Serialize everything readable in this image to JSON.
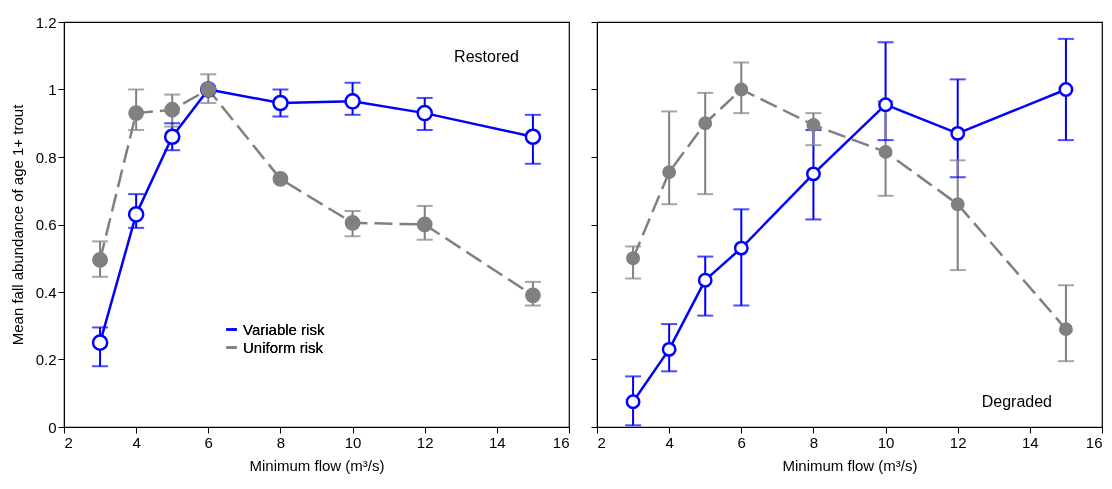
{
  "chart_data": [
    {
      "type": "line",
      "xlabel": "Minimum flow (m³/s)",
      "ylabel": "Mean fall abundance of age 1+ trout",
      "x": [
        3,
        4,
        5,
        6,
        8,
        10,
        12,
        15
      ],
      "xlim": [
        2,
        16
      ],
      "xticks": [
        2,
        4,
        6,
        8,
        10,
        12,
        14,
        16
      ],
      "ylim": [
        0,
        1.2
      ],
      "yticks": [
        0,
        0.2,
        0.4,
        0.6,
        0.8,
        1,
        1.2
      ],
      "legend": "bottom",
      "annotations": [
        "Restored"
      ],
      "series": [
        {
          "name": "Variable risk",
          "color": "#0000ff",
          "marker": "circle",
          "line_style": "solid",
          "values": [
            0.25,
            0.63,
            0.86,
            1.0,
            0.96,
            0.965,
            0.93,
            0.86
          ],
          "errors": [
            [
              0.18,
              0.295
            ],
            [
              0.59,
              0.69
            ],
            [
              0.82,
              0.9
            ],
            null,
            [
              0.92,
              1.0
            ],
            [
              0.925,
              1.02
            ],
            [
              0.88,
              0.975
            ],
            [
              0.78,
              0.925
            ]
          ]
        },
        {
          "name": "Uniform risk",
          "color": "#808080",
          "marker": "circle",
          "line_style": "dashed",
          "values": [
            0.495,
            0.93,
            0.94,
            1.0,
            0.735,
            0.605,
            0.6,
            0.39
          ],
          "errors": [
            [
              0.445,
              0.55
            ],
            [
              0.88,
              1.0
            ],
            [
              0.89,
              0.985
            ],
            [
              0.96,
              1.045
            ],
            null,
            [
              0.565,
              0.64
            ],
            [
              0.555,
              0.655
            ],
            [
              0.36,
              0.43
            ]
          ]
        }
      ]
    },
    {
      "type": "line",
      "xlabel": "Minimum flow (m³/s)",
      "x": [
        3,
        4,
        5,
        6,
        8,
        10,
        12,
        15
      ],
      "xlim": [
        2,
        16
      ],
      "xticks": [
        2,
        4,
        6,
        8,
        10,
        12,
        14,
        16
      ],
      "ylim": [
        0,
        1.2
      ],
      "yticks": [
        0,
        0.2,
        0.4,
        0.6,
        0.8,
        1,
        1.2
      ],
      "tick_labels": "x",
      "annotations": [
        "Degraded"
      ],
      "series": [
        {
          "color": "#0000ff",
          "marker": "circle",
          "line_style": "solid",
          "values": [
            0.075,
            0.23,
            0.435,
            0.53,
            0.75,
            0.955,
            0.87,
            1.0
          ],
          "errors": [
            [
              0.005,
              0.15
            ],
            [
              0.165,
              0.305
            ],
            [
              0.33,
              0.505
            ],
            [
              0.36,
              0.645
            ],
            [
              0.615,
              0.88
            ],
            [
              0.85,
              1.14
            ],
            [
              0.74,
              1.03
            ],
            [
              0.85,
              1.15
            ]
          ]
        },
        {
          "color": "#808080",
          "marker": "circle",
          "line_style": "dashed",
          "values": [
            0.5,
            0.755,
            0.9,
            1.0,
            0.895,
            0.815,
            0.66,
            0.29
          ],
          "errors": [
            [
              0.44,
              0.535
            ],
            [
              0.66,
              0.935
            ],
            [
              0.69,
              0.99
            ],
            [
              0.93,
              1.08
            ],
            [
              0.835,
              0.93
            ],
            [
              0.685,
              0.965
            ],
            [
              0.465,
              0.79
            ],
            [
              0.195,
              0.42
            ]
          ]
        }
      ]
    }
  ]
}
